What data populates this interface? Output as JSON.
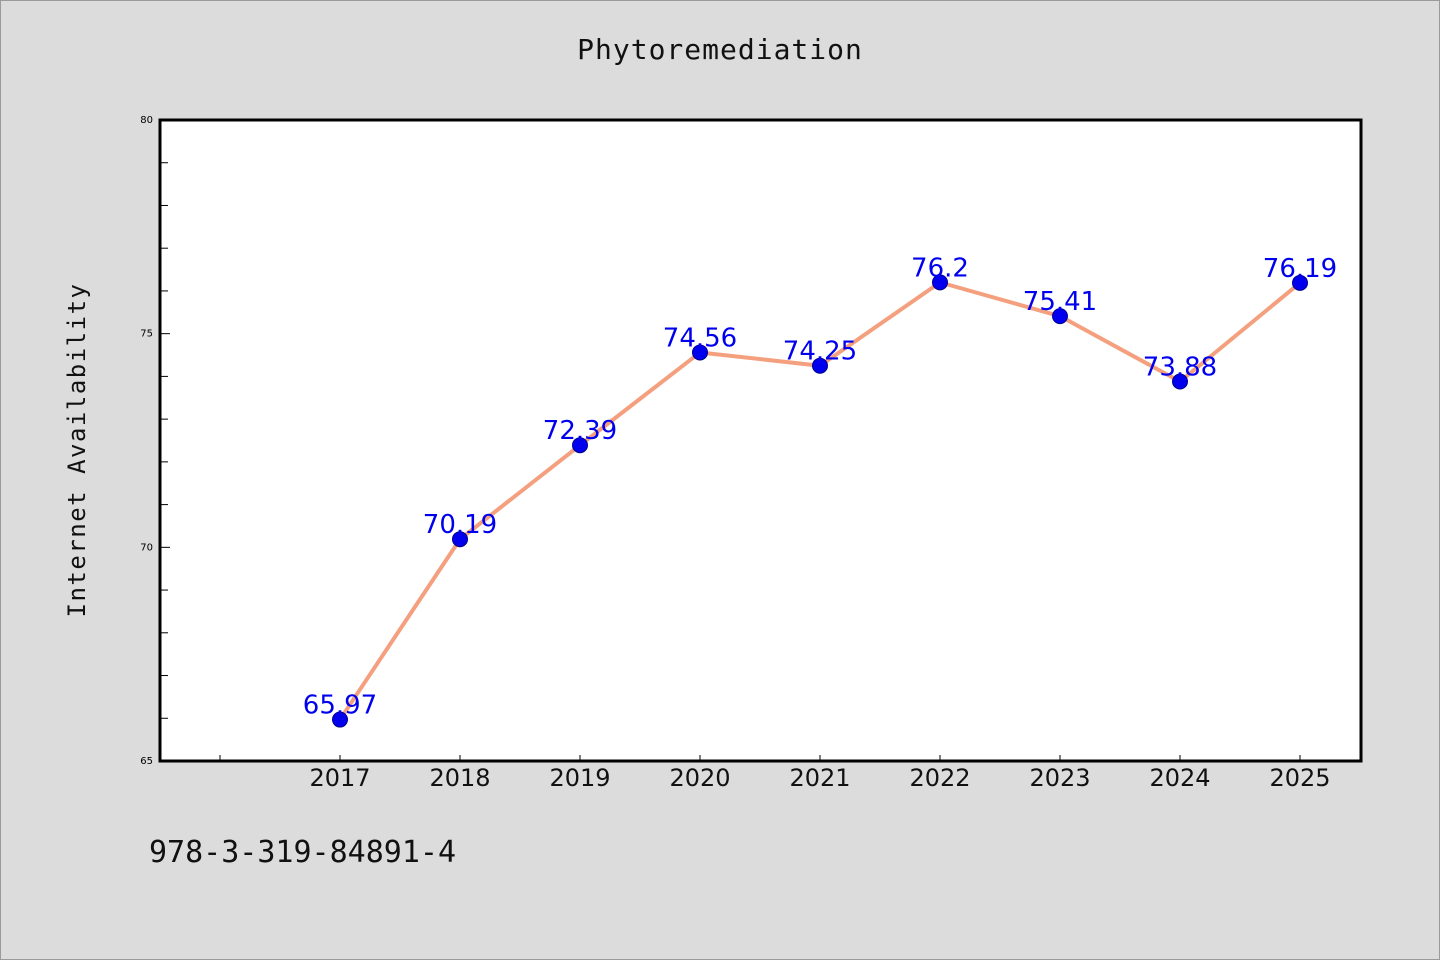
{
  "chart_data": {
    "type": "line",
    "title": "Phytoremediation",
    "xlabel": "",
    "ylabel": "Internet Availability",
    "x": [
      "2017",
      "2018",
      "2019",
      "2020",
      "2021",
      "2022",
      "2023",
      "2024",
      "2025"
    ],
    "values": [
      65.97,
      70.19,
      72.39,
      74.56,
      74.25,
      76.2,
      75.41,
      73.88,
      76.19
    ],
    "value_labels": [
      "65.97",
      "70.19",
      "72.39",
      "74.56",
      "74.25",
      "76.2",
      "75.41",
      "73.88",
      "76.19"
    ],
    "ylim": [
      65,
      80
    ],
    "yticks": [
      "65",
      "70",
      "75",
      "80"
    ],
    "grid": false,
    "legend": "none",
    "colors": {
      "line": "#f4a07e",
      "marker": "#0000ee",
      "marker_edge": "#00008b",
      "label": "#0000ee",
      "plot_bg": "#ffffff",
      "page_bg": "#dcdcdc"
    }
  },
  "footer": {
    "id_text": "978-3-319-84891-4"
  }
}
